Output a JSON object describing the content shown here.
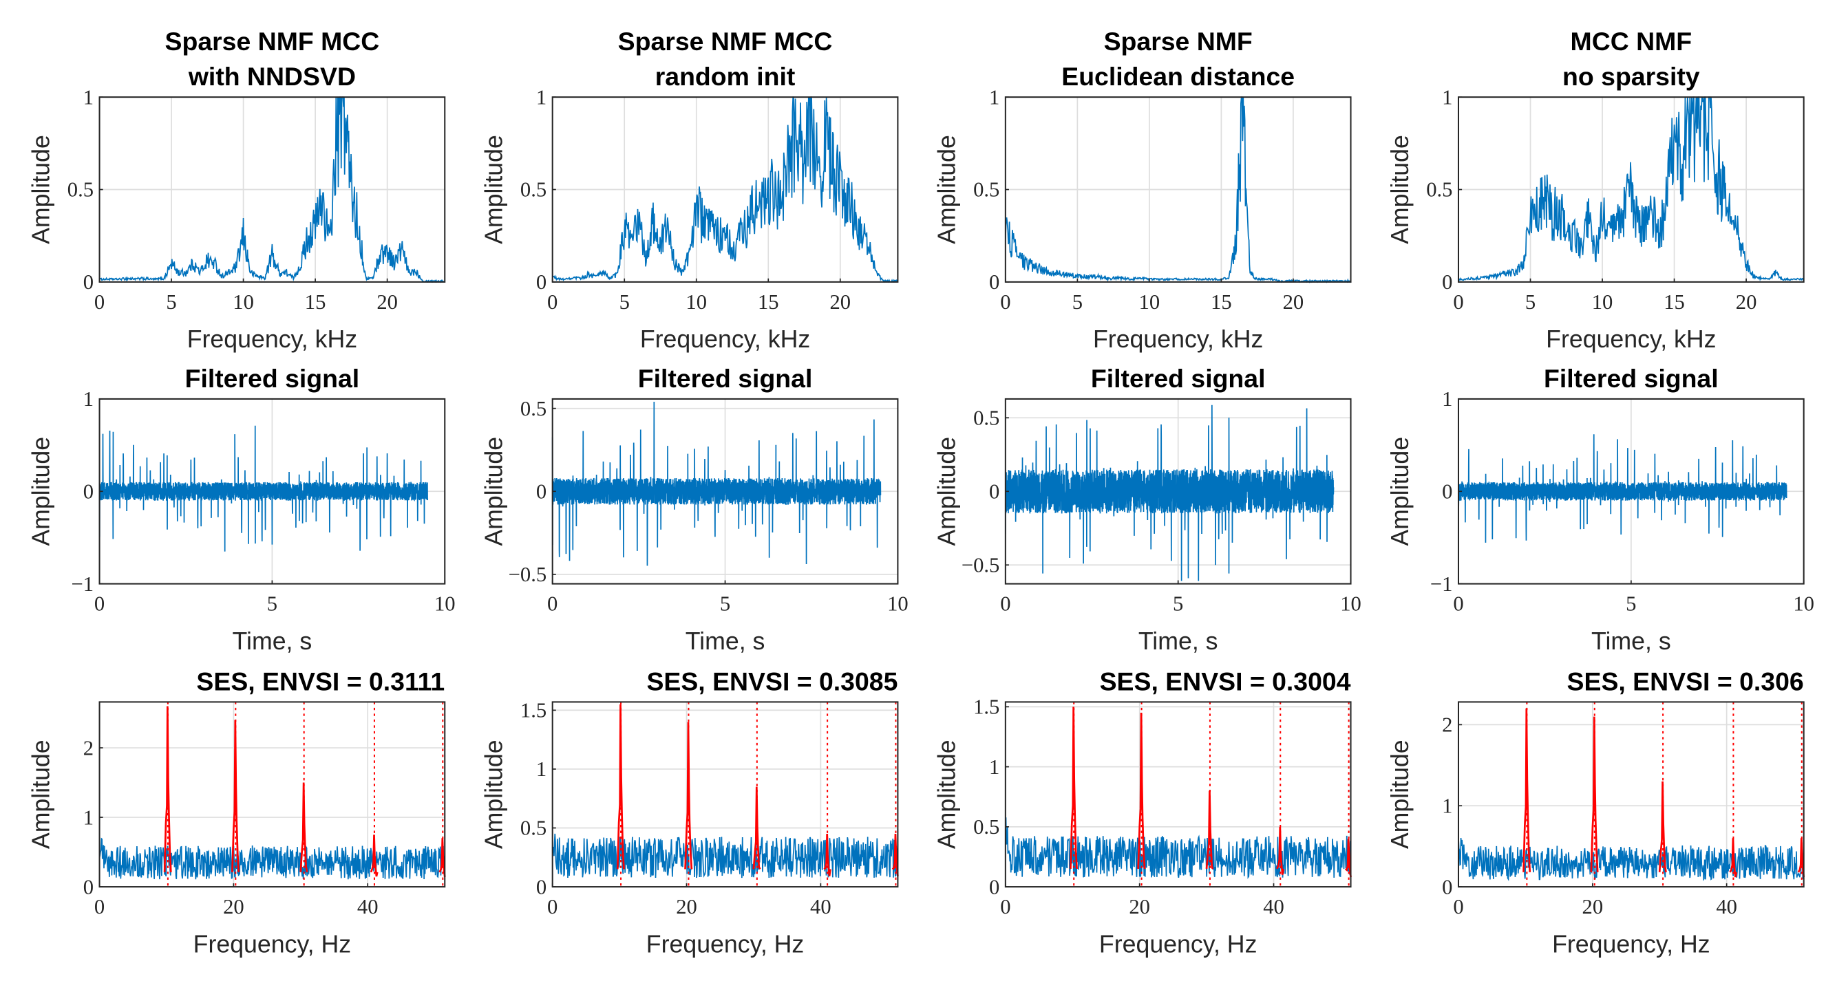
{
  "colors": {
    "line": "#0072bd",
    "harmonic": "#ff0000",
    "grid": "#dedede",
    "axes": "#262626"
  },
  "chart_data": [
    {
      "type": "line",
      "title": [
        "Sparse NMF MCC",
        "with NNDSVD"
      ],
      "xlabel": "Frequency, kHz",
      "ylabel": "Amplitude",
      "xlim": [
        0,
        24
      ],
      "ylim": [
        0,
        1
      ],
      "xticks": [
        0,
        5,
        10,
        15,
        20
      ],
      "yticks": [
        0,
        0.5,
        1
      ],
      "grid": true,
      "x_step": 0.5,
      "values": [
        0.01,
        0.01,
        0.01,
        0.01,
        0.02,
        0.01,
        0.02,
        0.01,
        0.01,
        0.02,
        0.1,
        0.05,
        0.05,
        0.1,
        0.05,
        0.12,
        0.1,
        0.03,
        0.05,
        0.08,
        0.25,
        0.05,
        0.03,
        0.02,
        0.15,
        0.05,
        0.05,
        0.02,
        0.1,
        0.25,
        0.3,
        0.45,
        0.2,
        0.8,
        0.95,
        0.5,
        0.3,
        0.02,
        0.02,
        0.15,
        0.17,
        0.1,
        0.18,
        0.05,
        0.06,
        0,
        0,
        0,
        0
      ]
    },
    {
      "type": "line",
      "title": [
        "Sparse NMF MCC",
        "random init"
      ],
      "xlabel": "Frequency, kHz",
      "ylabel": "Amplitude",
      "xlim": [
        0,
        24
      ],
      "ylim": [
        0,
        1
      ],
      "xticks": [
        0,
        5,
        10,
        15,
        20
      ],
      "yticks": [
        0,
        0.5,
        1
      ],
      "grid": true,
      "x_step": 0.5,
      "values": [
        0.03,
        0.01,
        0.01,
        0.02,
        0.02,
        0.04,
        0.03,
        0.05,
        0.02,
        0.04,
        0.3,
        0.2,
        0.35,
        0.1,
        0.35,
        0.2,
        0.3,
        0.1,
        0.05,
        0.15,
        0.45,
        0.3,
        0.3,
        0.25,
        0.3,
        0.15,
        0.25,
        0.3,
        0.4,
        0.4,
        0.5,
        0.45,
        0.5,
        0.7,
        0.78,
        0.6,
        0.95,
        0.6,
        0.75,
        0.6,
        0.5,
        0.45,
        0.35,
        0.25,
        0.2,
        0.05,
        0,
        0,
        0
      ]
    },
    {
      "type": "line",
      "title": [
        "Sparse NMF",
        "Euclidean distance"
      ],
      "xlabel": "Frequency, kHz",
      "ylabel": "Amplitude",
      "xlim": [
        0,
        24
      ],
      "ylim": [
        0,
        1
      ],
      "xticks": [
        0,
        5,
        10,
        15,
        20
      ],
      "yticks": [
        0,
        0.5,
        1
      ],
      "grid": true,
      "x_step": 0.5,
      "values": [
        0.3,
        0.2,
        0.12,
        0.1,
        0.08,
        0.07,
        0.05,
        0.05,
        0.04,
        0.04,
        0.03,
        0.03,
        0.03,
        0.03,
        0.02,
        0.02,
        0.02,
        0.02,
        0.015,
        0.015,
        0.01,
        0.01,
        0.01,
        0.01,
        0.01,
        0.01,
        0.01,
        0.01,
        0.01,
        0.01,
        0.01,
        0.02,
        0.2,
        0.95,
        0.05,
        0.01,
        0.01,
        0.01,
        0,
        0,
        0,
        0,
        0,
        0,
        0,
        0,
        0,
        0,
        0
      ]
    },
    {
      "type": "line",
      "title": [
        "MCC NMF",
        "no sparsity"
      ],
      "xlabel": "Frequency, kHz",
      "ylabel": "Amplitude",
      "xlim": [
        0,
        24
      ],
      "ylim": [
        0,
        1
      ],
      "xticks": [
        0,
        5,
        10,
        15,
        20
      ],
      "yticks": [
        0,
        0.5,
        1
      ],
      "grid": true,
      "x_step": 0.5,
      "values": [
        0.01,
        0.01,
        0.02,
        0.02,
        0.03,
        0.03,
        0.04,
        0.05,
        0.05,
        0.1,
        0.35,
        0.4,
        0.45,
        0.35,
        0.4,
        0.3,
        0.25,
        0.2,
        0.35,
        0.15,
        0.35,
        0.25,
        0.3,
        0.4,
        0.5,
        0.3,
        0.3,
        0.35,
        0.25,
        0.5,
        0.7,
        0.7,
        0.85,
        0.88,
        0.85,
        0.9,
        0.6,
        0.45,
        0.3,
        0.25,
        0.1,
        0.03,
        0.02,
        0.01,
        0.05,
        0.01,
        0.01,
        0.01,
        0.01
      ]
    },
    {
      "type": "line",
      "title": [
        "Filtered signal"
      ],
      "xlabel": "Time, s",
      "ylabel": "Amplitude",
      "xlim": [
        0,
        10
      ],
      "ylim": [
        -1,
        1
      ],
      "xticks": [
        0,
        5,
        10
      ],
      "yticks": [
        -1,
        0,
        1
      ],
      "grid": true,
      "duration_s": 9.5,
      "impulse_period_s": 0.098,
      "noise_level": 0.1,
      "impulse_max": 0.7
    },
    {
      "type": "line",
      "title": [
        "Filtered signal"
      ],
      "xlabel": "Time, s",
      "ylabel": "Amplitude",
      "xlim": [
        0,
        10
      ],
      "ylim": [
        -0.557,
        0.557
      ],
      "xticks": [
        0,
        5,
        10
      ],
      "yticks": [
        -0.5,
        0,
        0.5
      ],
      "grid": true,
      "duration_s": 9.5,
      "impulse_period_s": 0.098,
      "noise_level": 0.08,
      "impulse_max": 0.5
    },
    {
      "type": "line",
      "title": [
        "Filtered signal"
      ],
      "xlabel": "Time, s",
      "ylabel": "Amplitude",
      "xlim": [
        0,
        10
      ],
      "ylim": [
        -0.628,
        0.628
      ],
      "xticks": [
        0,
        5,
        10
      ],
      "yticks": [
        -0.5,
        0,
        0.5
      ],
      "grid": true,
      "duration_s": 9.5,
      "impulse_period_s": 0.098,
      "noise_level": 0.15,
      "impulse_max": 0.6
    },
    {
      "type": "line",
      "title": [
        "Filtered signal"
      ],
      "xlabel": "Time, s",
      "ylabel": "Amplitude",
      "xlim": [
        0,
        10
      ],
      "ylim": [
        -1,
        1
      ],
      "xticks": [
        0,
        5,
        10
      ],
      "yticks": [
        -1,
        0,
        1
      ],
      "grid": true,
      "duration_s": 9.5,
      "impulse_period_s": 0.098,
      "noise_level": 0.1,
      "impulse_max": 0.6
    },
    {
      "type": "line",
      "title": [
        "SES, ENVSI = 0.3111"
      ],
      "xlabel": "Frequency, Hz",
      "ylabel": "Amplitude",
      "xlim": [
        0,
        51.5
      ],
      "ylim": [
        0,
        2.66
      ],
      "xticks": [
        0,
        20,
        40
      ],
      "yticks": [
        0,
        1,
        2
      ],
      "grid": true,
      "noise_level": 0.35,
      "harmonics_hz": [
        10.2,
        20.3,
        30.5,
        41,
        51.2
      ],
      "harmonic_peaks": [
        2.6,
        2.4,
        1.5,
        0.75,
        0.7
      ]
    },
    {
      "type": "line",
      "title": [
        "SES, ENVSI = 0.3085"
      ],
      "xlabel": "Frequency, Hz",
      "ylabel": "Amplitude",
      "xlim": [
        0,
        51.5
      ],
      "ylim": [
        0,
        1.57
      ],
      "xticks": [
        0,
        20,
        40
      ],
      "yticks": [
        0,
        0.5,
        1,
        1.5
      ],
      "grid": true,
      "noise_level": 0.25,
      "harmonics_hz": [
        10.2,
        20.3,
        30.5,
        41,
        51.2
      ],
      "harmonic_peaks": [
        1.55,
        1.4,
        0.85,
        0.45,
        0.45
      ]
    },
    {
      "type": "line",
      "title": [
        "SES, ENVSI = 0.3004"
      ],
      "xlabel": "Frequency, Hz",
      "ylabel": "Amplitude",
      "xlim": [
        0,
        51.5
      ],
      "ylim": [
        0,
        1.54
      ],
      "xticks": [
        0,
        20,
        40
      ],
      "yticks": [
        0,
        0.5,
        1,
        1.5
      ],
      "grid": true,
      "noise_level": 0.25,
      "harmonics_hz": [
        10.2,
        20.3,
        30.5,
        41,
        51.2
      ],
      "harmonic_peaks": [
        1.5,
        1.45,
        0.8,
        0.5,
        0.4
      ]
    },
    {
      "type": "line",
      "title": [
        "SES, ENVSI = 0.306"
      ],
      "xlabel": "Frequency, Hz",
      "ylabel": "Amplitude",
      "xlim": [
        0,
        51.5
      ],
      "ylim": [
        0,
        2.28
      ],
      "xticks": [
        0,
        20,
        40
      ],
      "yticks": [
        0,
        1,
        2
      ],
      "grid": true,
      "noise_level": 0.3,
      "harmonics_hz": [
        10.2,
        20.3,
        30.5,
        41,
        51.2
      ],
      "harmonic_peaks": [
        2.2,
        2.1,
        1.3,
        0.6,
        0.6
      ]
    }
  ]
}
